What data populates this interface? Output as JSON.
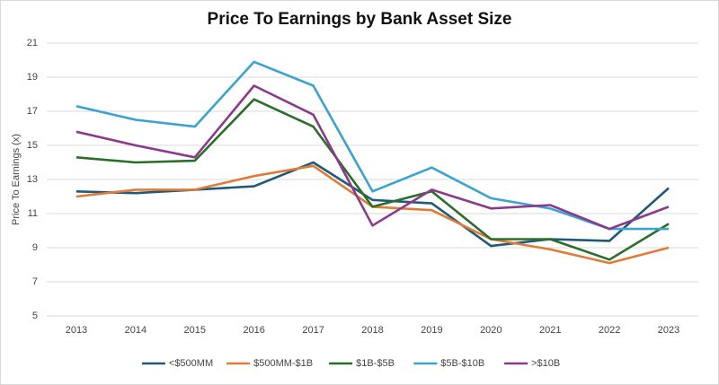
{
  "chart_data": {
    "type": "line",
    "title": "Price To Earnings by Bank Asset Size",
    "y_label": "Price To Earnings (x)",
    "categories": [
      "2013",
      "2014",
      "2015",
      "2016",
      "2017",
      "2018",
      "2019",
      "2020",
      "2021",
      "2022",
      "2023"
    ],
    "series": [
      {
        "name": "<$500MM",
        "color": "#215a78",
        "values": [
          12.3,
          12.2,
          12.4,
          12.6,
          14.0,
          11.8,
          11.6,
          9.1,
          9.5,
          9.4,
          12.5
        ]
      },
      {
        "name": "$500MM-$1B",
        "color": "#e07b39",
        "values": [
          12.0,
          12.4,
          12.4,
          13.2,
          13.8,
          11.4,
          11.2,
          9.5,
          8.9,
          8.1,
          9.0
        ]
      },
      {
        "name": "$1B-$5B",
        "color": "#2a6e2a",
        "values": [
          14.3,
          14.0,
          14.1,
          17.7,
          16.1,
          11.4,
          12.3,
          9.5,
          9.5,
          8.3,
          10.4
        ]
      },
      {
        "name": "$5B-$10B",
        "color": "#3ba3d0",
        "values": [
          17.3,
          16.5,
          16.1,
          19.9,
          18.5,
          12.3,
          13.7,
          11.9,
          11.3,
          10.1,
          10.1
        ]
      },
      {
        "name": ">$10B",
        "color": "#8b3a8b",
        "values": [
          15.8,
          15.0,
          14.3,
          18.5,
          16.8,
          10.3,
          12.4,
          11.3,
          11.5,
          10.1,
          11.4
        ]
      }
    ],
    "ylim": [
      5,
      21
    ],
    "yticks": [
      5,
      7,
      9,
      11,
      13,
      15,
      17,
      19,
      21
    ],
    "grid": true,
    "legend": "bottom"
  }
}
